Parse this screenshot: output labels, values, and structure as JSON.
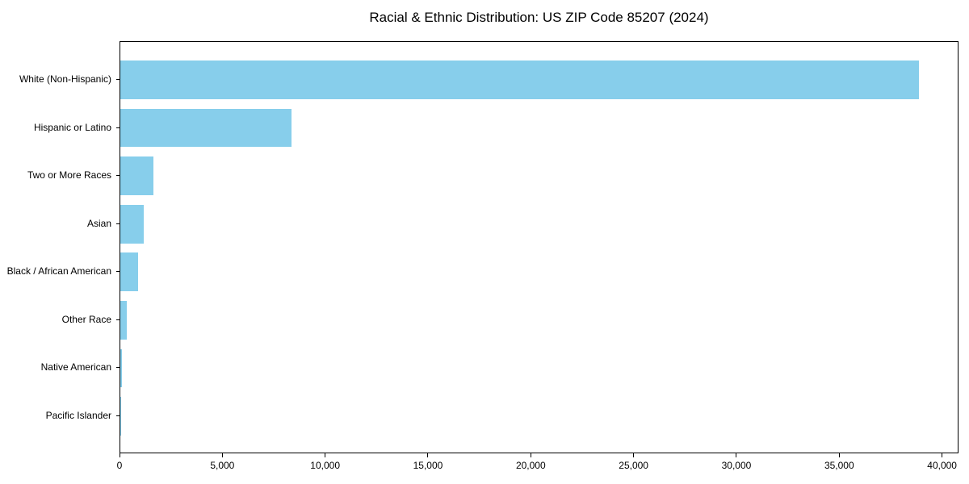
{
  "chart_data": {
    "type": "bar",
    "orientation": "horizontal",
    "title": "Racial & Ethnic Distribution: US ZIP Code 85207 (2024)",
    "categories": [
      "White (Non-Hispanic)",
      "Hispanic or Latino",
      "Two or More Races",
      "Asian",
      "Black / African American",
      "Other Race",
      "Native American",
      "Pacific Islander"
    ],
    "values": [
      38820,
      8320,
      1610,
      1140,
      860,
      310,
      80,
      20
    ],
    "xlabel": "",
    "ylabel": "",
    "xlim": [
      0,
      40800
    ],
    "xticks": [
      {
        "value": 0,
        "label": "0"
      },
      {
        "value": 5000,
        "label": "5,000"
      },
      {
        "value": 10000,
        "label": "10,000"
      },
      {
        "value": 15000,
        "label": "15,000"
      },
      {
        "value": 20000,
        "label": "20,000"
      },
      {
        "value": 25000,
        "label": "25,000"
      },
      {
        "value": 30000,
        "label": "30,000"
      },
      {
        "value": 35000,
        "label": "35,000"
      },
      {
        "value": 40000,
        "label": "40,000"
      }
    ],
    "bar_color": "#87CEEB",
    "text_color": "#000000",
    "spine_color": "#000000",
    "background_color": "#ffffff",
    "grid": false,
    "legend": "none"
  }
}
